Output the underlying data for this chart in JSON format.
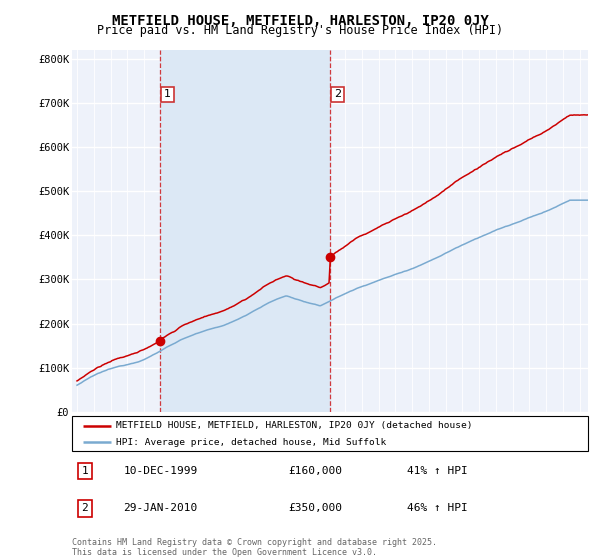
{
  "title": "METFIELD HOUSE, METFIELD, HARLESTON, IP20 0JY",
  "subtitle": "Price paid vs. HM Land Registry's House Price Index (HPI)",
  "ylabel_ticks": [
    0,
    100000,
    200000,
    300000,
    400000,
    500000,
    600000,
    700000,
    800000
  ],
  "ylabel_labels": [
    "£0",
    "£100K",
    "£200K",
    "£300K",
    "£400K",
    "£500K",
    "£600K",
    "£700K",
    "£800K"
  ],
  "xlim": [
    1994.7,
    2025.5
  ],
  "ylim": [
    0,
    820000
  ],
  "purchase1_year": 1999.94,
  "purchase1_price": 160000,
  "purchase1_label": "1",
  "purchase1_date": "10-DEC-1999",
  "purchase1_amount": "£160,000",
  "purchase1_hpi": "41% ↑ HPI",
  "purchase2_year": 2010.08,
  "purchase2_price": 350000,
  "purchase2_label": "2",
  "purchase2_date": "29-JAN-2010",
  "purchase2_amount": "£350,000",
  "purchase2_hpi": "46% ↑ HPI",
  "line1_color": "#cc0000",
  "line2_color": "#7aaad0",
  "highlight_color": "#dce8f5",
  "background_color": "#eef2fa",
  "legend_line1": "METFIELD HOUSE, METFIELD, HARLESTON, IP20 0JY (detached house)",
  "legend_line2": "HPI: Average price, detached house, Mid Suffolk",
  "footer": "Contains HM Land Registry data © Crown copyright and database right 2025.\nThis data is licensed under the Open Government Licence v3.0.",
  "title_fontsize": 10,
  "subtitle_fontsize": 8.5,
  "tick_fontsize": 7.5
}
